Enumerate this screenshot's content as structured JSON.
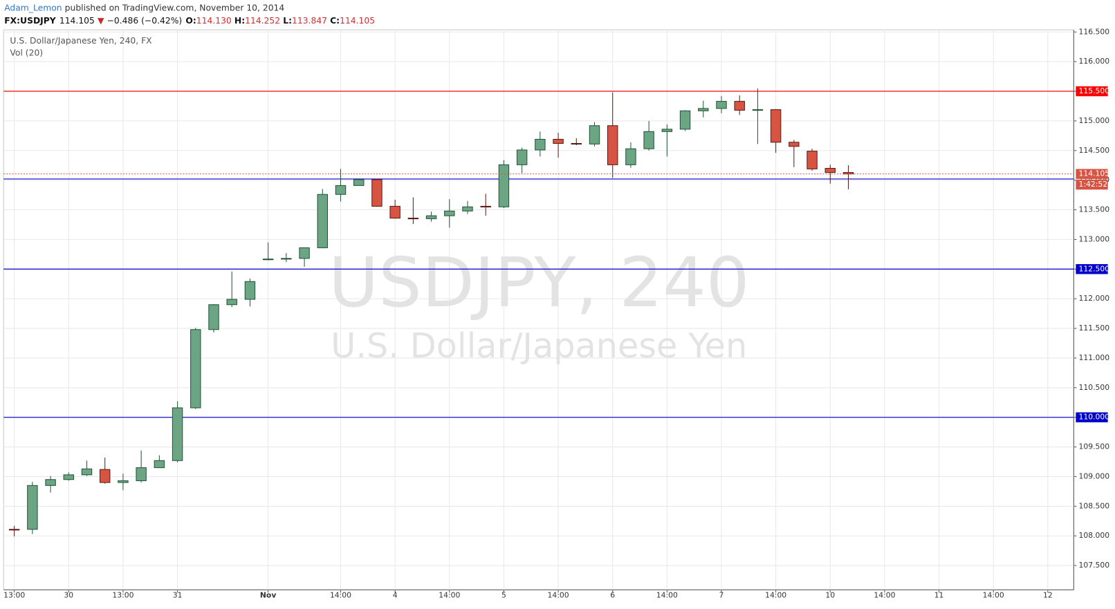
{
  "header": {
    "author": "Adam_Lemon",
    "published": "published on TradingView.com, November 10, 2014",
    "symbol": "FX:USDJPY",
    "last": "114.105",
    "arrow": "▼",
    "change": "−0.486 (−0.42%)",
    "open_label": "O:",
    "open": "114.130",
    "high_label": "H:",
    "high": "114.252",
    "low_label": "L:",
    "low": "113.847",
    "close_label": "C:",
    "close": "114.105"
  },
  "chart_data": {
    "type": "candlestick",
    "title": "U.S. Dollar/Japanese Yen, 240, FX",
    "subtitle": "Vol (20)",
    "watermark": "USDJPY, 240",
    "watermark_subtitle": "U.S. Dollar/Japanese Yen",
    "x": [
      0,
      1,
      2,
      3,
      4,
      5,
      6,
      7,
      8,
      9,
      10,
      11,
      12,
      13,
      14,
      15,
      16,
      17,
      18,
      19,
      20,
      21,
      22,
      23,
      24,
      25,
      26,
      27,
      28,
      29,
      30,
      31,
      32,
      33,
      34,
      35,
      36,
      37,
      38,
      39,
      40,
      41,
      42,
      43,
      44,
      45,
      46
    ],
    "open": [
      108.11,
      108.11,
      108.85,
      108.95,
      109.03,
      109.12,
      108.9,
      108.93,
      109.15,
      109.27,
      110.16,
      111.48,
      111.9,
      111.99,
      112.66,
      112.67,
      112.68,
      112.86,
      113.76,
      113.91,
      114.01,
      113.56,
      113.36,
      113.35,
      113.4,
      113.48,
      113.56,
      113.55,
      114.26,
      114.51,
      114.69,
      114.62,
      114.61,
      114.92,
      114.26,
      114.53,
      114.82,
      114.86,
      115.17,
      115.21,
      115.33,
      115.18,
      115.19,
      114.64,
      114.49,
      114.2,
      114.13
    ],
    "high": [
      108.17,
      108.91,
      109.01,
      109.07,
      109.27,
      109.32,
      109.05,
      109.44,
      109.36,
      110.27,
      111.51,
      111.91,
      112.46,
      112.34,
      112.95,
      112.77,
      112.86,
      113.85,
      114.19,
      114.03,
      114.02,
      113.67,
      113.71,
      113.47,
      113.68,
      113.65,
      113.77,
      114.34,
      114.55,
      114.82,
      114.8,
      114.71,
      114.98,
      115.48,
      114.64,
      115.0,
      114.94,
      115.18,
      115.34,
      115.42,
      115.43,
      115.55,
      115.2,
      114.68,
      114.53,
      114.26,
      114.252
    ],
    "low": [
      107.99,
      108.03,
      108.73,
      108.93,
      109.01,
      108.88,
      108.77,
      108.9,
      109.15,
      109.24,
      110.14,
      111.43,
      111.86,
      111.87,
      112.65,
      112.62,
      112.54,
      112.85,
      113.64,
      113.91,
      113.55,
      113.35,
      113.26,
      113.3,
      113.2,
      113.43,
      113.4,
      113.53,
      114.12,
      114.4,
      114.38,
      114.59,
      114.57,
      114.04,
      114.21,
      114.5,
      114.4,
      114.83,
      115.06,
      115.13,
      115.1,
      114.61,
      114.46,
      114.22,
      114.16,
      113.94,
      113.847
    ],
    "close": [
      108.1,
      108.85,
      108.95,
      109.03,
      109.13,
      108.9,
      108.93,
      109.15,
      109.27,
      110.16,
      111.48,
      111.9,
      111.99,
      112.29,
      112.67,
      112.68,
      112.86,
      113.76,
      113.91,
      114.01,
      113.56,
      113.36,
      113.35,
      113.4,
      113.48,
      113.55,
      113.55,
      114.26,
      114.51,
      114.69,
      114.62,
      114.61,
      114.92,
      114.26,
      114.53,
      114.82,
      114.86,
      115.17,
      115.21,
      115.33,
      115.18,
      115.19,
      114.64,
      114.57,
      114.19,
      114.13,
      114.105
    ],
    "up_color": "#6ba583",
    "up_border": "#225437",
    "down_color": "#d75442",
    "down_border": "#5b1a13",
    "xlim": [
      -0.59,
      58.43
    ],
    "xticks": [
      {
        "value": 0,
        "label": "13:00"
      },
      {
        "value": 3,
        "label": "30"
      },
      {
        "value": 6,
        "label": "13:00"
      },
      {
        "value": 9,
        "label": "31"
      },
      {
        "value": 14,
        "label": "Nov"
      },
      {
        "value": 18,
        "label": "14:00"
      },
      {
        "value": 21,
        "label": "4"
      },
      {
        "value": 24,
        "label": "14:00"
      },
      {
        "value": 27,
        "label": "5"
      },
      {
        "value": 30,
        "label": "14:00"
      },
      {
        "value": 33,
        "label": "6"
      },
      {
        "value": 36,
        "label": "14:00"
      },
      {
        "value": 39,
        "label": "7"
      },
      {
        "value": 42,
        "label": "14:00"
      },
      {
        "value": 45,
        "label": "10"
      },
      {
        "value": 48,
        "label": "14:00"
      },
      {
        "value": 51,
        "label": "11"
      },
      {
        "value": 54,
        "label": "14:00"
      },
      {
        "value": 57,
        "label": "12"
      }
    ],
    "ylim": [
      107.09,
      116.536
    ],
    "yticks": [
      {
        "value": 107.5,
        "label": "107.500"
      },
      {
        "value": 108,
        "label": "108.000"
      },
      {
        "value": 108.5,
        "label": "108.500"
      },
      {
        "value": 109,
        "label": "109.000"
      },
      {
        "value": 109.5,
        "label": "109.500"
      },
      {
        "value": 110,
        "label": "110.000"
      },
      {
        "value": 110.5,
        "label": "110.500"
      },
      {
        "value": 111,
        "label": "111.000"
      },
      {
        "value": 111.5,
        "label": "111.500"
      },
      {
        "value": 112,
        "label": "112.000"
      },
      {
        "value": 112.5,
        "label": "112.500"
      },
      {
        "value": 113,
        "label": "113.000"
      },
      {
        "value": 113.5,
        "label": "113.500"
      },
      {
        "value": 114,
        "label": "114.000"
      },
      {
        "value": 114.5,
        "label": "114.500"
      },
      {
        "value": 115,
        "label": "115.000"
      },
      {
        "value": 115.5,
        "label": "115.500"
      },
      {
        "value": 116,
        "label": "116.000"
      },
      {
        "value": 116.5,
        "label": "116.500"
      }
    ],
    "grid": true,
    "levels": [
      {
        "value": 115.5,
        "label": "115.500",
        "color": "#ff0000"
      },
      {
        "value": 114.02,
        "color": "#0000cc"
      },
      {
        "value": 112.5,
        "label": "112.500",
        "color": "#0000cc"
      },
      {
        "value": 110,
        "label": "110.000",
        "color": "#0000cc"
      }
    ],
    "last_price": {
      "value": 114.105,
      "label": "114.105",
      "color": "#d75442"
    },
    "countdown": "1:42:52"
  }
}
